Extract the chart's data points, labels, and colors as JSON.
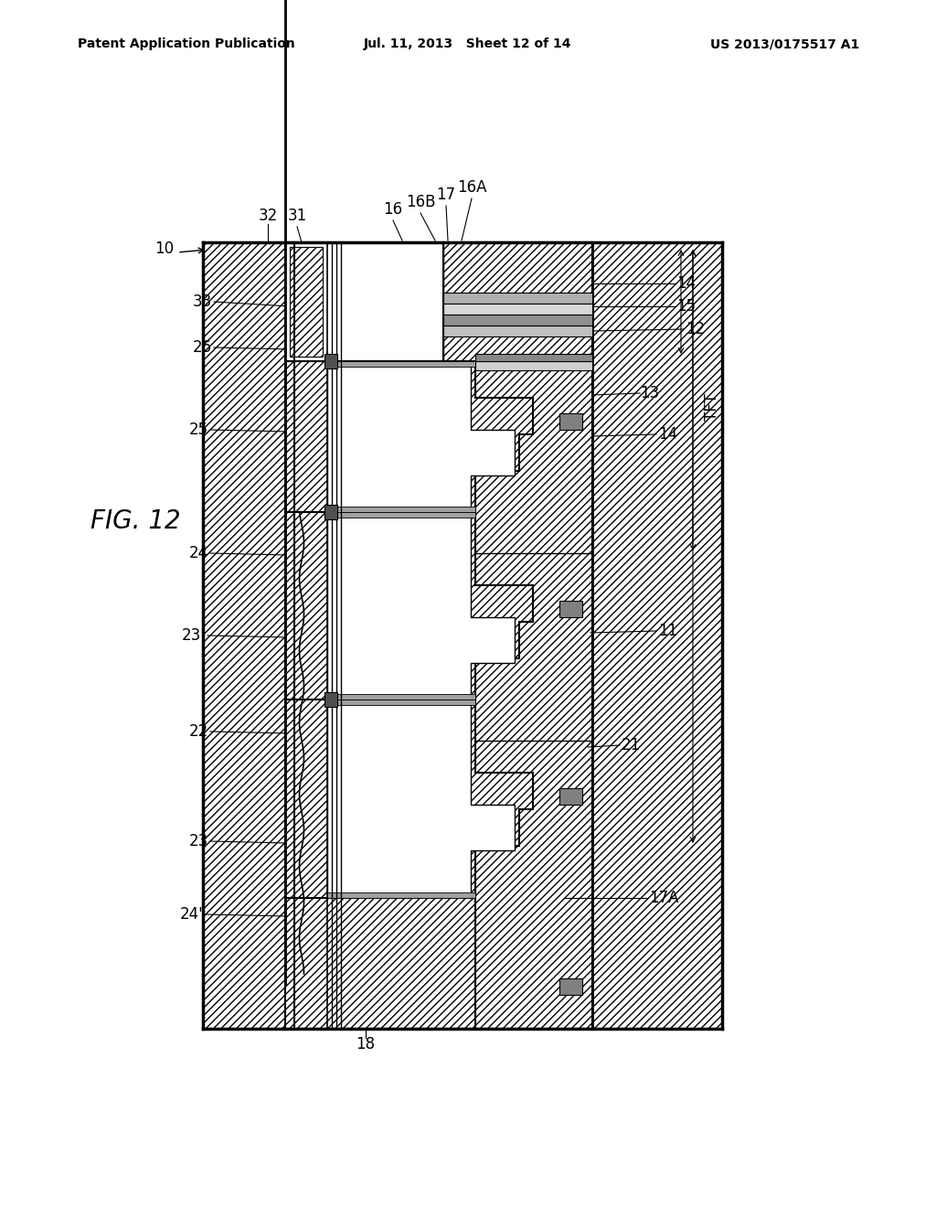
{
  "header_left": "Patent Application Publication",
  "header_center": "Jul. 11, 2013   Sheet 12 of 14",
  "header_right": "US 2013/0175517 A1",
  "bg_color": "#ffffff"
}
